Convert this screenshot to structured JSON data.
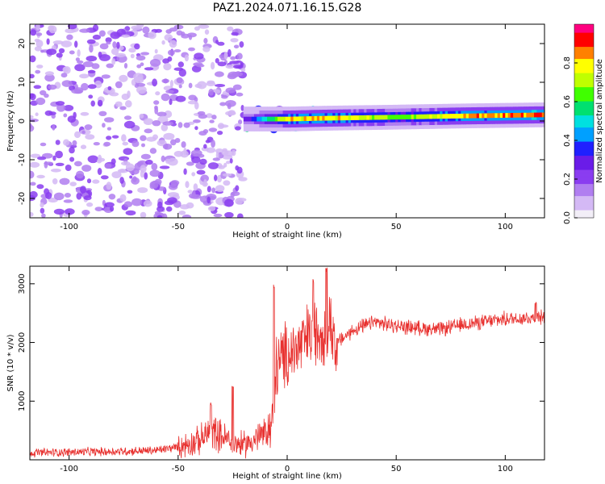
{
  "figure": {
    "title": "PAZ1.2024.071.16.15.G28"
  },
  "colors": {
    "snr_line": "#e8312f",
    "colormap": [
      "#f2eef7",
      "#d4b9f5",
      "#b07ef0",
      "#8a3df0",
      "#6a1ce8",
      "#2020ff",
      "#00a0ff",
      "#00e0e0",
      "#00e070",
      "#40ff00",
      "#c0ff00",
      "#ffff00",
      "#ff8000",
      "#ff0000",
      "#ff0080"
    ]
  },
  "chart_data": [
    {
      "type": "heatmap",
      "name": "spectrogram",
      "xlabel": "Height of straight line (km)",
      "ylabel": "Frequency (Hz)",
      "xlim": [
        -118,
        118
      ],
      "ylim": [
        -25,
        25
      ],
      "xticks": [
        -100,
        -50,
        0,
        50,
        100
      ],
      "yticks": [
        -20,
        -10,
        0,
        10,
        20
      ],
      "colorbar": {
        "label": "Normalized spectral amplitude",
        "range": [
          0,
          1
        ],
        "ticks": [
          "0.0",
          "0.2",
          "0.4",
          "0.6",
          "0.8"
        ]
      },
      "noise_region": {
        "x_range": [
          -118,
          -20
        ],
        "frequency_range": [
          -25,
          25
        ],
        "amplitude_range": [
          0.05,
          0.35
        ]
      },
      "transition": {
        "x_range": [
          -20,
          15
        ],
        "frequency": 0.5
      },
      "signal_line": [
        {
          "x": -20,
          "frequency": 0.5,
          "amplitude": 0.3
        },
        {
          "x": 0,
          "frequency": 0.5,
          "amplitude": 0.85
        },
        {
          "x": 15,
          "frequency": 0.7,
          "amplitude": 0.9
        },
        {
          "x": 50,
          "frequency": 1.0,
          "amplitude": 0.7
        },
        {
          "x": 80,
          "frequency": 1.3,
          "amplitude": 0.9
        },
        {
          "x": 118,
          "frequency": 1.6,
          "amplitude": 0.95
        }
      ],
      "grid": false
    },
    {
      "type": "line",
      "name": "snr",
      "xlabel": "Height of straight line (km)",
      "ylabel": "SNR (10 * v/v)",
      "xlim": [
        -118,
        118
      ],
      "ylim": [
        0,
        3300
      ],
      "xticks": [
        -100,
        -50,
        0,
        50,
        100
      ],
      "yticks": [
        1000,
        2000,
        3000
      ],
      "trend": [
        {
          "x": -118,
          "y": 120
        },
        {
          "x": -100,
          "y": 130
        },
        {
          "x": -80,
          "y": 140
        },
        {
          "x": -60,
          "y": 160
        },
        {
          "x": -50,
          "y": 220
        },
        {
          "x": -40,
          "y": 330
        },
        {
          "x": -35,
          "y": 500
        },
        {
          "x": -30,
          "y": 400
        },
        {
          "x": -25,
          "y": 300
        },
        {
          "x": -20,
          "y": 250
        },
        {
          "x": -15,
          "y": 350
        },
        {
          "x": -10,
          "y": 450
        },
        {
          "x": -7,
          "y": 600
        },
        {
          "x": -5,
          "y": 1600
        },
        {
          "x": 0,
          "y": 1800
        },
        {
          "x": 5,
          "y": 1900
        },
        {
          "x": 10,
          "y": 2100
        },
        {
          "x": 15,
          "y": 2200
        },
        {
          "x": 20,
          "y": 2300
        },
        {
          "x": 23,
          "y": 2000
        },
        {
          "x": 30,
          "y": 2200
        },
        {
          "x": 40,
          "y": 2350
        },
        {
          "x": 50,
          "y": 2280
        },
        {
          "x": 60,
          "y": 2250
        },
        {
          "x": 70,
          "y": 2220
        },
        {
          "x": 80,
          "y": 2300
        },
        {
          "x": 90,
          "y": 2350
        },
        {
          "x": 100,
          "y": 2400
        },
        {
          "x": 110,
          "y": 2420
        },
        {
          "x": 118,
          "y": 2430
        }
      ],
      "peaks": [
        {
          "x": -35,
          "y": 980
        },
        {
          "x": -25,
          "y": 1280
        },
        {
          "x": -6,
          "y": 3000
        },
        {
          "x": 12,
          "y": 3100
        },
        {
          "x": 18,
          "y": 3280
        },
        {
          "x": 22,
          "y": 3150
        },
        {
          "x": 114,
          "y": 2700
        }
      ],
      "grid": false
    }
  ]
}
